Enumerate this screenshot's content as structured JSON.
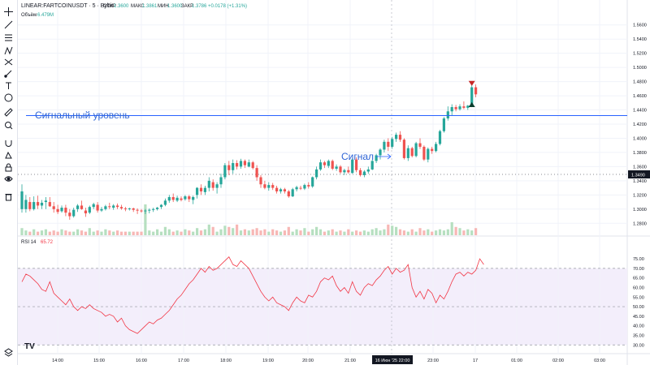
{
  "symbol": {
    "name": "LINEAR:FARTCOINUSDT · 5 · Bybit",
    "open_label": "ОТКР",
    "open": "1.3600",
    "high_label": "МАКС",
    "high": "1.3861",
    "low_label": "МИН",
    "low": "1.3600",
    "close_label": "ЗАКР",
    "close": "1.3786",
    "change": "+0.0178 (+1.31%)"
  },
  "volume_legend": {
    "label": "Объём",
    "value": "6.479M"
  },
  "rsi_legend": {
    "label": "RSI 14",
    "value": "65.72"
  },
  "annotations": {
    "signal_level": "Сигнальный уровень",
    "signal": "Сигнал"
  },
  "price_axis": {
    "ticks": [
      "1.5600",
      "1.5400",
      "1.5200",
      "1.5000",
      "1.4800",
      "1.4600",
      "1.4400",
      "1.4200",
      "1.4000",
      "1.3800",
      "1.3600",
      "1.3400",
      "1.3200",
      "1.3000",
      "1.2800"
    ],
    "current_price": "1.3490"
  },
  "rsi_axis": {
    "ticks": [
      "75.00",
      "70.00",
      "65.00",
      "60.00",
      "55.00",
      "50.00",
      "45.00",
      "40.00",
      "35.00",
      "30.00"
    ]
  },
  "time_axis": {
    "ticks": [
      "14:00",
      "15:00",
      "16:00",
      "17:00",
      "18:00",
      "19:00",
      "20:00",
      "21:00",
      "23:00",
      "17",
      "01:00",
      "02:00",
      "03:00"
    ],
    "cursor_label": "16 Июн '25  22:00"
  },
  "top_buttons": [
    "↓",
    "↑",
    "▭"
  ],
  "toolbar": {
    "tools": [
      "crosshair-icon",
      "trend-line-icon",
      "fib-icon",
      "pattern-icon",
      "measure-icon",
      "brush-icon",
      "text-icon",
      "emoji-icon",
      "ruler-icon",
      "zoom-icon",
      "magnet-icon",
      "lock-drawing-icon",
      "lock-icon",
      "eye-icon",
      "trash-icon"
    ]
  },
  "colors": {
    "up": "#26a69a",
    "down": "#ef5350",
    "up_volume": "#b6dfc0",
    "down_volume": "#f7b7b5",
    "signal_line": "#2962ff",
    "annotation_text": "#2f65d6",
    "rsi_line": "#f23645",
    "rsi_band": "#f3eefb"
  },
  "chart_data": {
    "type": "candlestick",
    "y_range": [
      1.27,
      1.57
    ],
    "signal_level": 1.432,
    "candles": [
      {
        "o": 1.3,
        "h": 1.335,
        "l": 1.295,
        "c": 1.325
      },
      {
        "o": 1.3,
        "h": 1.32,
        "l": 1.295,
        "c": 1.313
      },
      {
        "o": 1.31,
        "h": 1.317,
        "l": 1.297,
        "c": 1.3
      },
      {
        "o": 1.3,
        "h": 1.318,
        "l": 1.298,
        "c": 1.31
      },
      {
        "o": 1.31,
        "h": 1.319,
        "l": 1.3,
        "c": 1.305
      },
      {
        "o": 1.305,
        "h": 1.313,
        "l": 1.3,
        "c": 1.309
      },
      {
        "o": 1.31,
        "h": 1.317,
        "l": 1.3,
        "c": 1.312
      },
      {
        "o": 1.31,
        "h": 1.317,
        "l": 1.303,
        "c": 1.304
      },
      {
        "o": 1.304,
        "h": 1.31,
        "l": 1.295,
        "c": 1.3
      },
      {
        "o": 1.3,
        "h": 1.306,
        "l": 1.293,
        "c": 1.296
      },
      {
        "o": 1.297,
        "h": 1.305,
        "l": 1.295,
        "c": 1.302
      },
      {
        "o": 1.302,
        "h": 1.306,
        "l": 1.29,
        "c": 1.295
      },
      {
        "o": 1.295,
        "h": 1.3,
        "l": 1.285,
        "c": 1.29
      },
      {
        "o": 1.29,
        "h": 1.302,
        "l": 1.288,
        "c": 1.299
      },
      {
        "o": 1.3,
        "h": 1.307,
        "l": 1.296,
        "c": 1.305
      },
      {
        "o": 1.305,
        "h": 1.312,
        "l": 1.299,
        "c": 1.3
      },
      {
        "o": 1.298,
        "h": 1.302,
        "l": 1.289,
        "c": 1.294
      },
      {
        "o": 1.295,
        "h": 1.305,
        "l": 1.293,
        "c": 1.303
      },
      {
        "o": 1.303,
        "h": 1.309,
        "l": 1.3,
        "c": 1.307
      },
      {
        "o": 1.306,
        "h": 1.31,
        "l": 1.295,
        "c": 1.298
      },
      {
        "o": 1.298,
        "h": 1.303,
        "l": 1.296,
        "c": 1.3
      },
      {
        "o": 1.3,
        "h": 1.306,
        "l": 1.298,
        "c": 1.304
      },
      {
        "o": 1.304,
        "h": 1.309,
        "l": 1.3,
        "c": 1.303
      },
      {
        "o": 1.302,
        "h": 1.307,
        "l": 1.299,
        "c": 1.305
      },
      {
        "o": 1.305,
        "h": 1.308,
        "l": 1.3,
        "c": 1.303
      },
      {
        "o": 1.303,
        "h": 1.306,
        "l": 1.299,
        "c": 1.301
      },
      {
        "o": 1.301,
        "h": 1.303,
        "l": 1.297,
        "c": 1.3
      },
      {
        "o": 1.3,
        "h": 1.302,
        "l": 1.298,
        "c": 1.301
      },
      {
        "o": 1.301,
        "h": 1.302,
        "l": 1.296,
        "c": 1.299
      },
      {
        "o": 1.299,
        "h": 1.301,
        "l": 1.293,
        "c": 1.298
      },
      {
        "o": 1.298,
        "h": 1.3,
        "l": 1.295,
        "c": 1.297
      },
      {
        "o": 1.297,
        "h": 1.3,
        "l": 1.293,
        "c": 1.298
      },
      {
        "o": 1.298,
        "h": 1.301,
        "l": 1.294,
        "c": 1.299
      },
      {
        "o": 1.299,
        "h": 1.302,
        "l": 1.296,
        "c": 1.3
      },
      {
        "o": 1.3,
        "h": 1.303,
        "l": 1.298,
        "c": 1.302
      },
      {
        "o": 1.303,
        "h": 1.307,
        "l": 1.3,
        "c": 1.306
      },
      {
        "o": 1.306,
        "h": 1.315,
        "l": 1.304,
        "c": 1.312
      },
      {
        "o": 1.312,
        "h": 1.32,
        "l": 1.309,
        "c": 1.317
      },
      {
        "o": 1.317,
        "h": 1.322,
        "l": 1.31,
        "c": 1.313
      },
      {
        "o": 1.312,
        "h": 1.319,
        "l": 1.31,
        "c": 1.316
      },
      {
        "o": 1.315,
        "h": 1.318,
        "l": 1.311,
        "c": 1.313
      },
      {
        "o": 1.314,
        "h": 1.32,
        "l": 1.312,
        "c": 1.318
      },
      {
        "o": 1.318,
        "h": 1.32,
        "l": 1.31,
        "c": 1.314
      },
      {
        "o": 1.313,
        "h": 1.319,
        "l": 1.307,
        "c": 1.317
      },
      {
        "o": 1.32,
        "h": 1.331,
        "l": 1.315,
        "c": 1.33
      },
      {
        "o": 1.33,
        "h": 1.335,
        "l": 1.32,
        "c": 1.325
      },
      {
        "o": 1.324,
        "h": 1.333,
        "l": 1.32,
        "c": 1.33
      },
      {
        "o": 1.33,
        "h": 1.345,
        "l": 1.325,
        "c": 1.34
      },
      {
        "o": 1.338,
        "h": 1.342,
        "l": 1.326,
        "c": 1.33
      },
      {
        "o": 1.33,
        "h": 1.338,
        "l": 1.322,
        "c": 1.335
      },
      {
        "o": 1.335,
        "h": 1.35,
        "l": 1.33,
        "c": 1.345
      },
      {
        "o": 1.345,
        "h": 1.365,
        "l": 1.342,
        "c": 1.362
      },
      {
        "o": 1.362,
        "h": 1.368,
        "l": 1.348,
        "c": 1.355
      },
      {
        "o": 1.355,
        "h": 1.37,
        "l": 1.35,
        "c": 1.365
      },
      {
        "o": 1.365,
        "h": 1.369,
        "l": 1.356,
        "c": 1.36
      },
      {
        "o": 1.36,
        "h": 1.371,
        "l": 1.357,
        "c": 1.368
      },
      {
        "o": 1.368,
        "h": 1.37,
        "l": 1.358,
        "c": 1.362
      },
      {
        "o": 1.36,
        "h": 1.37,
        "l": 1.359,
        "c": 1.366
      },
      {
        "o": 1.366,
        "h": 1.368,
        "l": 1.356,
        "c": 1.358
      },
      {
        "o": 1.358,
        "h": 1.362,
        "l": 1.34,
        "c": 1.345
      },
      {
        "o": 1.345,
        "h": 1.348,
        "l": 1.33,
        "c": 1.335
      },
      {
        "o": 1.335,
        "h": 1.34,
        "l": 1.328,
        "c": 1.33
      },
      {
        "o": 1.33,
        "h": 1.338,
        "l": 1.326,
        "c": 1.334
      },
      {
        "o": 1.334,
        "h": 1.337,
        "l": 1.327,
        "c": 1.33
      },
      {
        "o": 1.33,
        "h": 1.333,
        "l": 1.322,
        "c": 1.325
      },
      {
        "o": 1.325,
        "h": 1.33,
        "l": 1.322,
        "c": 1.328
      },
      {
        "o": 1.328,
        "h": 1.33,
        "l": 1.322,
        "c": 1.325
      },
      {
        "o": 1.325,
        "h": 1.327,
        "l": 1.316,
        "c": 1.318
      },
      {
        "o": 1.318,
        "h": 1.33,
        "l": 1.317,
        "c": 1.328
      },
      {
        "o": 1.328,
        "h": 1.333,
        "l": 1.325,
        "c": 1.331
      },
      {
        "o": 1.33,
        "h": 1.333,
        "l": 1.327,
        "c": 1.329
      },
      {
        "o": 1.329,
        "h": 1.336,
        "l": 1.327,
        "c": 1.334
      },
      {
        "o": 1.334,
        "h": 1.338,
        "l": 1.329,
        "c": 1.332
      },
      {
        "o": 1.332,
        "h": 1.346,
        "l": 1.33,
        "c": 1.345
      },
      {
        "o": 1.345,
        "h": 1.36,
        "l": 1.342,
        "c": 1.356
      },
      {
        "o": 1.356,
        "h": 1.37,
        "l": 1.354,
        "c": 1.366
      },
      {
        "o": 1.366,
        "h": 1.368,
        "l": 1.358,
        "c": 1.362
      },
      {
        "o": 1.361,
        "h": 1.37,
        "l": 1.358,
        "c": 1.368
      },
      {
        "o": 1.368,
        "h": 1.37,
        "l": 1.355,
        "c": 1.357
      },
      {
        "o": 1.357,
        "h": 1.363,
        "l": 1.354,
        "c": 1.36
      },
      {
        "o": 1.36,
        "h": 1.362,
        "l": 1.35,
        "c": 1.352
      },
      {
        "o": 1.352,
        "h": 1.357,
        "l": 1.348,
        "c": 1.355
      },
      {
        "o": 1.355,
        "h": 1.36,
        "l": 1.35,
        "c": 1.352
      },
      {
        "o": 1.351,
        "h": 1.372,
        "l": 1.35,
        "c": 1.37
      },
      {
        "o": 1.37,
        "h": 1.373,
        "l": 1.352,
        "c": 1.355
      },
      {
        "o": 1.355,
        "h": 1.358,
        "l": 1.346,
        "c": 1.348
      },
      {
        "o": 1.348,
        "h": 1.355,
        "l": 1.345,
        "c": 1.353
      },
      {
        "o": 1.353,
        "h": 1.36,
        "l": 1.35,
        "c": 1.356
      },
      {
        "o": 1.356,
        "h": 1.37,
        "l": 1.355,
        "c": 1.368
      },
      {
        "o": 1.368,
        "h": 1.378,
        "l": 1.365,
        "c": 1.376
      },
      {
        "o": 1.376,
        "h": 1.386,
        "l": 1.37,
        "c": 1.384
      },
      {
        "o": 1.384,
        "h": 1.398,
        "l": 1.38,
        "c": 1.395
      },
      {
        "o": 1.395,
        "h": 1.4,
        "l": 1.382,
        "c": 1.388
      },
      {
        "o": 1.388,
        "h": 1.402,
        "l": 1.385,
        "c": 1.399
      },
      {
        "o": 1.399,
        "h": 1.408,
        "l": 1.395,
        "c": 1.405
      },
      {
        "o": 1.405,
        "h": 1.41,
        "l": 1.395,
        "c": 1.398
      },
      {
        "o": 1.398,
        "h": 1.4,
        "l": 1.37,
        "c": 1.372
      },
      {
        "o": 1.372,
        "h": 1.39,
        "l": 1.368,
        "c": 1.386
      },
      {
        "o": 1.386,
        "h": 1.388,
        "l": 1.373,
        "c": 1.375
      },
      {
        "o": 1.375,
        "h": 1.395,
        "l": 1.373,
        "c": 1.393
      },
      {
        "o": 1.393,
        "h": 1.4,
        "l": 1.385,
        "c": 1.388
      },
      {
        "o": 1.388,
        "h": 1.39,
        "l": 1.368,
        "c": 1.37
      },
      {
        "o": 1.37,
        "h": 1.387,
        "l": 1.366,
        "c": 1.385
      },
      {
        "o": 1.385,
        "h": 1.388,
        "l": 1.378,
        "c": 1.382
      },
      {
        "o": 1.382,
        "h": 1.395,
        "l": 1.38,
        "c": 1.392
      },
      {
        "o": 1.392,
        "h": 1.412,
        "l": 1.39,
        "c": 1.41
      },
      {
        "o": 1.41,
        "h": 1.43,
        "l": 1.408,
        "c": 1.428
      },
      {
        "o": 1.428,
        "h": 1.445,
        "l": 1.425,
        "c": 1.438
      },
      {
        "o": 1.438,
        "h": 1.448,
        "l": 1.432,
        "c": 1.444
      },
      {
        "o": 1.444,
        "h": 1.447,
        "l": 1.438,
        "c": 1.441
      },
      {
        "o": 1.441,
        "h": 1.448,
        "l": 1.439,
        "c": 1.445
      },
      {
        "o": 1.445,
        "h": 1.452,
        "l": 1.441,
        "c": 1.443
      },
      {
        "o": 1.443,
        "h": 1.447,
        "l": 1.44,
        "c": 1.446
      },
      {
        "o": 1.446,
        "h": 1.476,
        "l": 1.444,
        "c": 1.472
      },
      {
        "o": 1.472,
        "h": 1.476,
        "l": 1.458,
        "c": 1.462
      }
    ],
    "volume": [
      6,
      4,
      3,
      5,
      3,
      4,
      5,
      3,
      4,
      3,
      5,
      4,
      3,
      3,
      5,
      4,
      3,
      6,
      3,
      4,
      3,
      5,
      4,
      3,
      4,
      3,
      3,
      3,
      3,
      3,
      3,
      26,
      4,
      3,
      5,
      3,
      7,
      5,
      3,
      4,
      3,
      5,
      4,
      3,
      6,
      4,
      5,
      9,
      7,
      3,
      5,
      8,
      7,
      6,
      9,
      4,
      5,
      4,
      5,
      6,
      4,
      5,
      3,
      5,
      4,
      3,
      4,
      7,
      3,
      5,
      4,
      6,
      3,
      5,
      7,
      5,
      3,
      4,
      5,
      3,
      4,
      3,
      5,
      3,
      4,
      3,
      4,
      3,
      5,
      6,
      4,
      5,
      9,
      8,
      7,
      5,
      4,
      3,
      5,
      3,
      6,
      4,
      5,
      3,
      4,
      5,
      4,
      5,
      11,
      7,
      6,
      4,
      5,
      4,
      6,
      14,
      3
    ],
    "rsi": [
      63,
      67,
      66,
      64,
      62,
      59,
      58,
      63,
      57,
      55,
      53,
      51,
      54,
      50,
      48,
      50,
      49,
      51,
      49,
      48,
      47,
      45,
      46,
      45,
      42,
      44,
      40,
      38,
      37,
      36,
      38,
      40,
      42,
      41,
      43,
      44,
      46,
      48,
      51,
      54,
      56,
      59,
      62,
      64,
      67,
      70,
      68,
      71,
      69,
      70,
      72,
      74,
      76,
      72,
      71,
      74,
      72,
      70,
      66,
      62,
      58,
      55,
      53,
      55,
      52,
      51,
      50,
      48,
      52,
      55,
      53,
      52,
      56,
      55,
      58,
      63,
      65,
      64,
      66,
      61,
      58,
      60,
      57,
      63,
      58,
      56,
      60,
      62,
      61,
      64,
      66,
      69,
      71,
      67,
      70,
      68,
      69,
      72,
      60,
      55,
      58,
      54,
      59,
      57,
      52,
      56,
      54,
      58,
      63,
      67,
      68,
      66,
      68,
      67,
      69,
      75,
      72
    ],
    "rsi_range": [
      28,
      78
    ],
    "rsi_levels": {
      "overbought": 70,
      "middle": 50,
      "oversold": 30
    }
  }
}
